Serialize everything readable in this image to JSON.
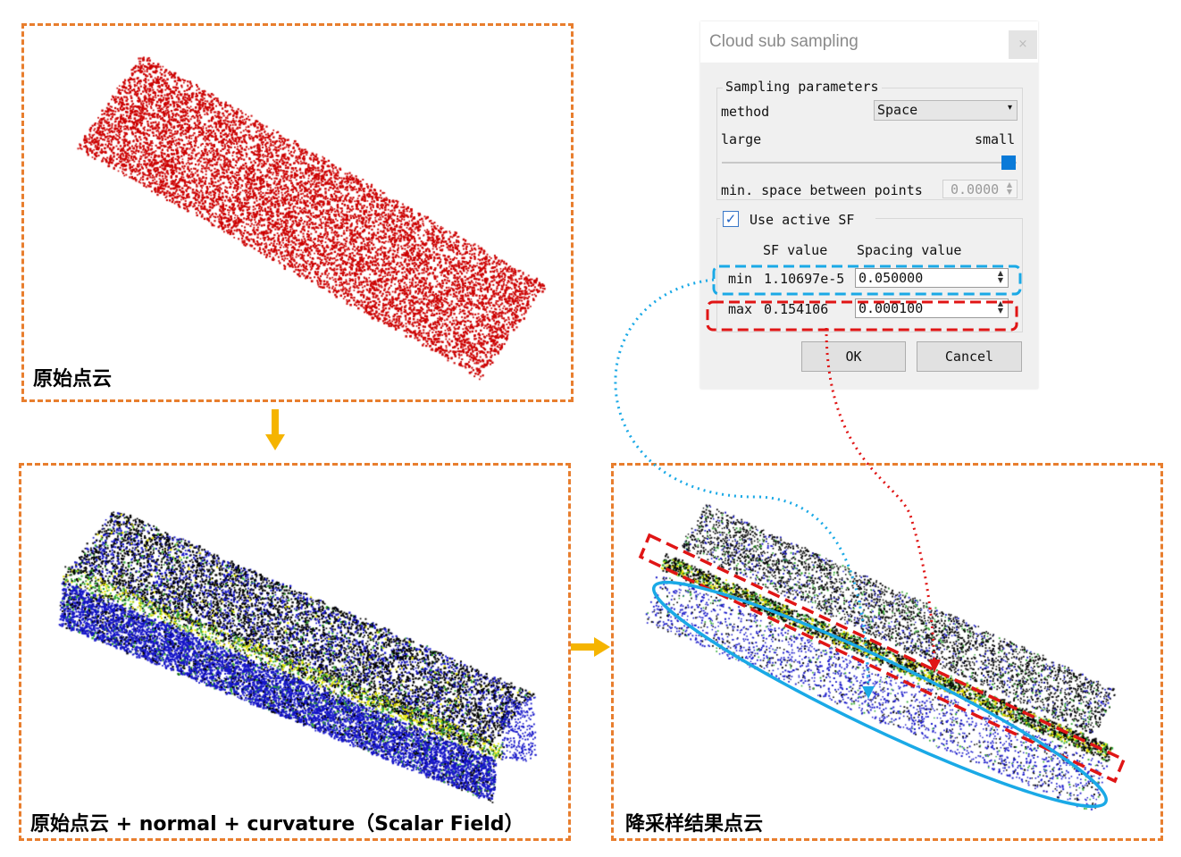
{
  "panels": {
    "original": {
      "caption": "原始点云"
    },
    "scalar_field": {
      "caption": "原始点云 + normal + curvature（Scalar Field）"
    },
    "downsampled": {
      "caption": "降采样结果点云"
    }
  },
  "dialog": {
    "title": "Cloud sub sampling",
    "close_label": "×",
    "sampling_group_title": "Sampling parameters",
    "method_label": "method",
    "method_value": "Space",
    "large_label": "large",
    "small_label": "small",
    "min_space_label": "min. space between points",
    "min_space_value": "0.0000",
    "use_active_sf_label": "Use active SF",
    "use_active_sf_checked": true,
    "sf_value_header": "SF value",
    "spacing_value_header": "Spacing value",
    "min_row": {
      "label": "min",
      "sf_value": "1.10697e-5",
      "spacing": "0.050000"
    },
    "max_row": {
      "label": "max",
      "sf_value": "0.154106",
      "spacing": "0.000100"
    },
    "ok_label": "OK",
    "cancel_label": "Cancel"
  },
  "colors": {
    "panel_border": "#e87e2e",
    "flow_arrow": "#f5b400",
    "highlight_blue": "#1aa9e6",
    "highlight_red": "#e01515",
    "point_red": "#cc0000",
    "point_blue": "#1414c8",
    "point_black": "#000000",
    "point_green": "#2ea82e",
    "point_yellow": "#e8e600"
  },
  "icons": {
    "flow_arrows": "arrow-icon",
    "dropdown": "chevron-down-icon",
    "spin": "spin-arrows-icon",
    "check": "checkmark-icon"
  }
}
